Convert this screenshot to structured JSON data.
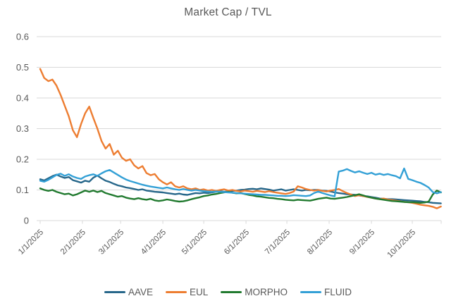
{
  "chart_data": {
    "type": "line",
    "title": "Market Cap / TVL",
    "xlabel": "",
    "ylabel": "",
    "grid": "horizontal",
    "legend_position": "bottom",
    "text_color": "#595959",
    "grid_color": "#D9D9D9",
    "y_axis": {
      "min": 0,
      "max": 0.6,
      "step": 0.1,
      "tick_labels": [
        "0",
        "0.1",
        "0.2",
        "0.3",
        "0.4",
        "0.5",
        "0.6"
      ]
    },
    "x_axis": {
      "tick_labels": [
        "1/1/2025",
        "2/1/2025",
        "3/1/2025",
        "4/1/2025",
        "5/1/2025",
        "6/1/2025",
        "7/1/2025",
        "8/1/2025",
        "9/1/2025",
        "10/1/2025"
      ],
      "tick_days": [
        0,
        31,
        59,
        90,
        120,
        151,
        181,
        212,
        243,
        273
      ]
    },
    "x_days": [
      0,
      3,
      6,
      9,
      12,
      15,
      18,
      21,
      24,
      27,
      30,
      33,
      36,
      39,
      42,
      45,
      48,
      51,
      54,
      57,
      60,
      63,
      66,
      69,
      72,
      75,
      78,
      81,
      84,
      87,
      90,
      93,
      96,
      99,
      102,
      105,
      108,
      111,
      114,
      117,
      120,
      123,
      126,
      129,
      132,
      135,
      138,
      141,
      144,
      147,
      150,
      153,
      156,
      159,
      162,
      165,
      168,
      171,
      174,
      177,
      180,
      183,
      186,
      189,
      192,
      195,
      198,
      201,
      204,
      207,
      210,
      213,
      216,
      219,
      222,
      225,
      228,
      231,
      234,
      237,
      240,
      243,
      246,
      249,
      252,
      255,
      258,
      261,
      264,
      267,
      270,
      273,
      276,
      279,
      282,
      285,
      288,
      291,
      294
    ],
    "series": [
      {
        "name": "AAVE",
        "color": "#27678A",
        "values": [
          0.135,
          0.131,
          0.138,
          0.145,
          0.15,
          0.144,
          0.139,
          0.142,
          0.132,
          0.128,
          0.124,
          0.13,
          0.127,
          0.14,
          0.147,
          0.138,
          0.13,
          0.126,
          0.12,
          0.115,
          0.112,
          0.108,
          0.106,
          0.103,
          0.1,
          0.102,
          0.098,
          0.096,
          0.094,
          0.093,
          0.092,
          0.09,
          0.088,
          0.086,
          0.088,
          0.085,
          0.084,
          0.087,
          0.09,
          0.089,
          0.091,
          0.09,
          0.092,
          0.094,
          0.096,
          0.094,
          0.095,
          0.097,
          0.098,
          0.1,
          0.101,
          0.103,
          0.104,
          0.102,
          0.105,
          0.103,
          0.101,
          0.098,
          0.1,
          0.102,
          0.098,
          0.1,
          0.102,
          0.1,
          0.098,
          0.1,
          0.099,
          0.1,
          0.1,
          0.098,
          0.097,
          0.095,
          0.092,
          0.09,
          0.088,
          0.086,
          0.085,
          0.084,
          0.082,
          0.08,
          0.079,
          0.077,
          0.075,
          0.072,
          0.071,
          0.07,
          0.07,
          0.069,
          0.068,
          0.067,
          0.066,
          0.065,
          0.064,
          0.063,
          0.061,
          0.06,
          0.058,
          0.057,
          0.056
        ]
      },
      {
        "name": "EUL",
        "color": "#ED7D31",
        "values": [
          0.495,
          0.465,
          0.455,
          0.46,
          0.44,
          0.41,
          0.375,
          0.34,
          0.295,
          0.272,
          0.315,
          0.35,
          0.372,
          0.335,
          0.3,
          0.26,
          0.235,
          0.25,
          0.215,
          0.228,
          0.205,
          0.195,
          0.2,
          0.18,
          0.17,
          0.178,
          0.155,
          0.148,
          0.152,
          0.135,
          0.125,
          0.118,
          0.125,
          0.112,
          0.108,
          0.112,
          0.105,
          0.102,
          0.105,
          0.1,
          0.102,
          0.098,
          0.1,
          0.097,
          0.1,
          0.102,
          0.098,
          0.1,
          0.097,
          0.095,
          0.098,
          0.096,
          0.094,
          0.097,
          0.095,
          0.093,
          0.096,
          0.093,
          0.091,
          0.089,
          0.087,
          0.09,
          0.095,
          0.112,
          0.108,
          0.103,
          0.1,
          0.098,
          0.1,
          0.097,
          0.095,
          0.098,
          0.1,
          0.103,
          0.096,
          0.09,
          0.085,
          0.08,
          0.083,
          0.08,
          0.077,
          0.075,
          0.072,
          0.07,
          0.072,
          0.069,
          0.067,
          0.065,
          0.063,
          0.061,
          0.06,
          0.058,
          0.055,
          0.052,
          0.05,
          0.048,
          0.045,
          0.04,
          0.046
        ]
      },
      {
        "name": "MORPHO",
        "color": "#217A2F",
        "values": [
          0.105,
          0.1,
          0.097,
          0.1,
          0.094,
          0.09,
          0.086,
          0.088,
          0.082,
          0.086,
          0.092,
          0.098,
          0.094,
          0.098,
          0.093,
          0.097,
          0.09,
          0.086,
          0.082,
          0.078,
          0.08,
          0.075,
          0.072,
          0.07,
          0.073,
          0.07,
          0.068,
          0.071,
          0.066,
          0.064,
          0.066,
          0.069,
          0.067,
          0.064,
          0.062,
          0.063,
          0.066,
          0.07,
          0.073,
          0.076,
          0.08,
          0.082,
          0.085,
          0.087,
          0.09,
          0.092,
          0.094,
          0.091,
          0.089,
          0.09,
          0.087,
          0.084,
          0.082,
          0.079,
          0.078,
          0.076,
          0.074,
          0.073,
          0.071,
          0.07,
          0.068,
          0.067,
          0.066,
          0.068,
          0.067,
          0.066,
          0.065,
          0.068,
          0.071,
          0.073,
          0.075,
          0.072,
          0.071,
          0.073,
          0.075,
          0.077,
          0.08,
          0.083,
          0.086,
          0.082,
          0.078,
          0.075,
          0.072,
          0.07,
          0.068,
          0.066,
          0.064,
          0.063,
          0.062,
          0.061,
          0.06,
          0.06,
          0.059,
          0.058,
          0.059,
          0.062,
          0.085,
          0.098,
          0.092
        ]
      },
      {
        "name": "FLUID",
        "color": "#33A0D6",
        "values": [
          0.13,
          0.127,
          0.133,
          0.141,
          0.149,
          0.153,
          0.146,
          0.151,
          0.144,
          0.139,
          0.136,
          0.144,
          0.148,
          0.151,
          0.146,
          0.154,
          0.161,
          0.165,
          0.157,
          0.149,
          0.141,
          0.134,
          0.129,
          0.125,
          0.121,
          0.117,
          0.114,
          0.111,
          0.109,
          0.107,
          0.105,
          0.108,
          0.105,
          0.102,
          0.1,
          0.103,
          0.1,
          0.098,
          0.1,
          0.098,
          0.096,
          0.095,
          0.094,
          0.095,
          0.094,
          0.093,
          0.092,
          0.091,
          0.09,
          0.089,
          0.088,
          0.087,
          0.086,
          0.085,
          0.084,
          0.084,
          0.083,
          0.082,
          0.081,
          0.081,
          0.08,
          0.081,
          0.083,
          0.082,
          0.081,
          0.08,
          0.082,
          0.09,
          0.095,
          0.09,
          0.086,
          0.082,
          0.079,
          0.16,
          0.163,
          0.168,
          0.162,
          0.157,
          0.161,
          0.156,
          0.152,
          0.156,
          0.15,
          0.153,
          0.149,
          0.152,
          0.148,
          0.145,
          0.138,
          0.17,
          0.136,
          0.132,
          0.127,
          0.123,
          0.116,
          0.108,
          0.093,
          0.089,
          0.093
        ]
      }
    ]
  }
}
